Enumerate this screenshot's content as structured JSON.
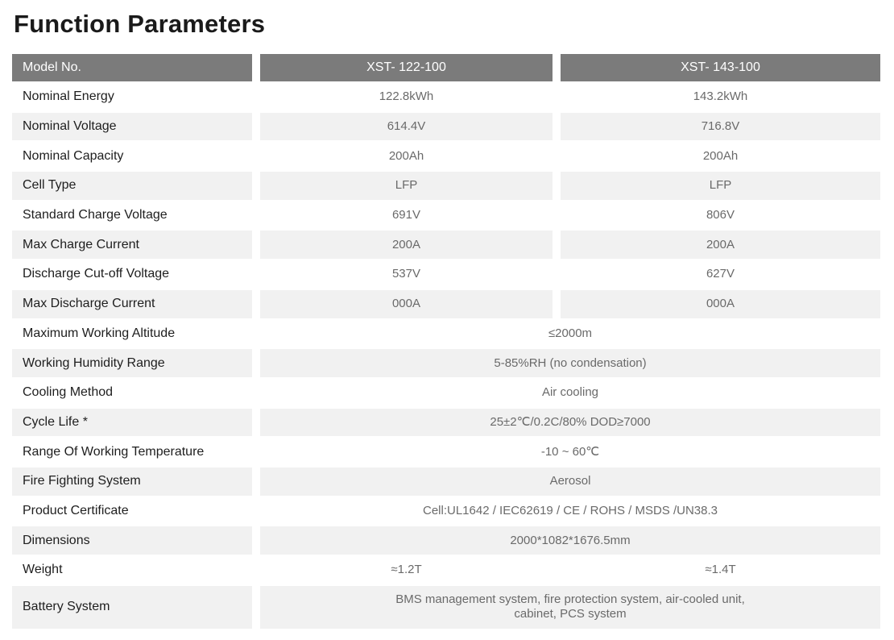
{
  "title": "Function Parameters",
  "header": {
    "label": "Model No.",
    "models": [
      "XST- 122-100",
      "XST- 143-100"
    ]
  },
  "rows": [
    {
      "label": "Nominal Energy",
      "values": [
        "122.8kWh",
        "143.2kWh"
      ]
    },
    {
      "label": "Nominal Voltage",
      "values": [
        "614.4V",
        "716.8V"
      ]
    },
    {
      "label": "Nominal Capacity",
      "values": [
        "200Ah",
        "200Ah"
      ]
    },
    {
      "label": "Cell Type",
      "values": [
        "LFP",
        "LFP"
      ]
    },
    {
      "label": "Standard Charge Voltage",
      "values": [
        "691V",
        "806V"
      ]
    },
    {
      "label": "Max Charge Current",
      "values": [
        "200A",
        "200A"
      ]
    },
    {
      "label": "Discharge Cut-off Voltage",
      "values": [
        "537V",
        "627V"
      ]
    },
    {
      "label": "Max Discharge Current",
      "values": [
        "000A",
        "000A"
      ]
    },
    {
      "label": "Maximum Working Altitude",
      "values": [
        "≤2000m"
      ]
    },
    {
      "label": "Working Humidity Range",
      "values": [
        "5-85%RH (no condensation)"
      ]
    },
    {
      "label": "Cooling Method",
      "values": [
        "Air cooling"
      ]
    },
    {
      "label": "Cycle Life *",
      "values": [
        "25±2℃/0.2C/80% DOD≥7000"
      ]
    },
    {
      "label": "Range Of Working Temperature",
      "values": [
        "-10 ~ 60℃"
      ]
    },
    {
      "label": "Fire Fighting System",
      "values": [
        "Aerosol"
      ]
    },
    {
      "label": "Product Certificate",
      "values": [
        "Cell:UL1642 / IEC62619 / CE / ROHS / MSDS /UN38.3"
      ]
    },
    {
      "label": "Dimensions",
      "values": [
        "2000*1082*1676.5mm"
      ]
    },
    {
      "label": "Weight",
      "values": [
        "≈1.2T",
        "≈1.4T"
      ]
    },
    {
      "label": "Battery System",
      "values": [
        "BMS management system, fire protection system, air-cooled unit,\ncabinet, PCS system"
      ]
    }
  ]
}
